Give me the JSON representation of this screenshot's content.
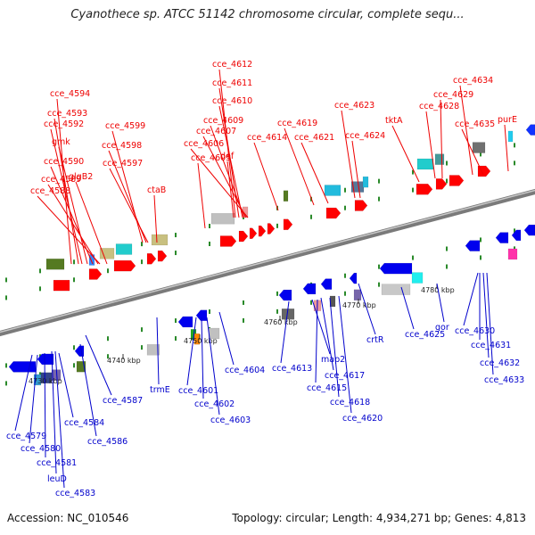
{
  "title": "Cyanothece sp. ATCC 51142 chromosome circular, complete sequ...",
  "footer": {
    "accession": "Accession: NC_010546",
    "summary": "Topology: circular; Length: 4,934,271 bp; Genes: 4,813"
  },
  "colors": {
    "forward_label": "#ee0000",
    "reverse_label": "#0000cc",
    "backbone": "#888888"
  },
  "ticks": [
    "4730 kbp",
    "4740 kbp",
    "4750 kbp",
    "4760 kbp",
    "4770 kbp",
    "4780 kbp"
  ],
  "forward_labels": [
    "cce_4594",
    "cce_4593",
    "cce_4592",
    "gmk",
    "cce_4590",
    "cce_4589",
    "cce_4588",
    "glgB2",
    "cce_4599",
    "cce_4598",
    "cce_4597",
    "ctaB",
    "cce_4612",
    "cce_4611",
    "cce_4610",
    "cce_4609",
    "cce_4607",
    "cce_4606",
    "cce_4605",
    "def",
    "cce_4614",
    "cce_4619",
    "cce_4621",
    "cce_4623",
    "cce_4624",
    "tktA",
    "cce_4629",
    "cce_4628",
    "cce_4634",
    "cce_4635",
    "purE"
  ],
  "reverse_labels": [
    "cce_4579",
    "cce_4580",
    "cce_4581",
    "leuD",
    "cce_4583",
    "cce_4584",
    "cce_4586",
    "cce_4587",
    "trmE",
    "cce_4601",
    "cce_4602",
    "cce_4603",
    "cce_4604",
    "cce_4613",
    "map2",
    "cce_4615",
    "cce_4617",
    "cce_4618",
    "cce_4620",
    "crtR",
    "cce_4625",
    "gor",
    "cce_4630",
    "cce_4631",
    "cce_4632",
    "cce_4633"
  ]
}
